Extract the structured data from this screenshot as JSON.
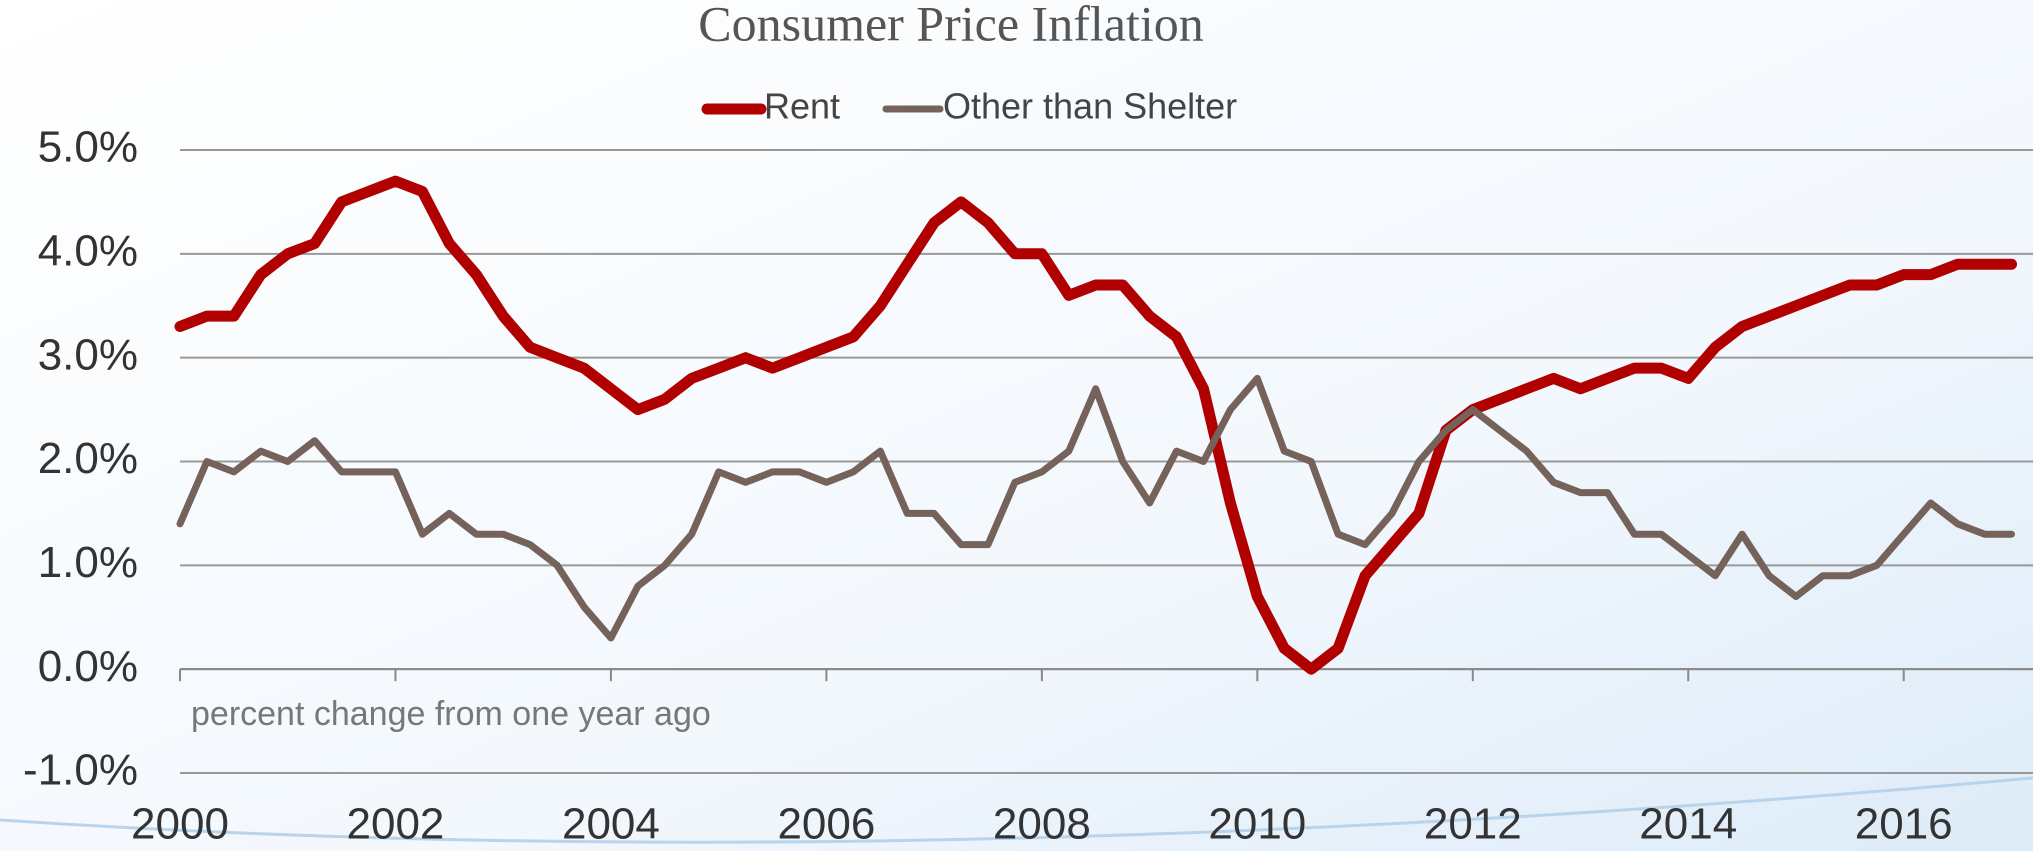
{
  "chart_data": {
    "type": "line",
    "title": "Consumer Price Inflation",
    "annotation": "percent change from one year ago",
    "x": [
      2000,
      2000.25,
      2000.5,
      2000.75,
      2001,
      2001.25,
      2001.5,
      2001.75,
      2002,
      2002.25,
      2002.5,
      2002.75,
      2003,
      2003.25,
      2003.5,
      2003.75,
      2004,
      2004.25,
      2004.5,
      2004.75,
      2005,
      2005.25,
      2005.5,
      2005.75,
      2006,
      2006.25,
      2006.5,
      2006.75,
      2007,
      2007.25,
      2007.5,
      2007.75,
      2008,
      2008.25,
      2008.5,
      2008.75,
      2009,
      2009.25,
      2009.5,
      2009.75,
      2010,
      2010.25,
      2010.5,
      2010.75,
      2011,
      2011.25,
      2011.5,
      2011.75,
      2012,
      2012.25,
      2012.5,
      2012.75,
      2013,
      2013.25,
      2013.5,
      2013.75,
      2014,
      2014.25,
      2014.5,
      2014.75,
      2015,
      2015.25,
      2015.5,
      2015.75,
      2016,
      2016.25,
      2016.5,
      2016.75,
      2017
    ],
    "series": [
      {
        "name": "Rent",
        "color": "#b00000",
        "values": [
          3.3,
          3.4,
          3.4,
          3.8,
          4.0,
          4.1,
          4.5,
          4.6,
          4.7,
          4.6,
          4.1,
          3.8,
          3.4,
          3.1,
          3.0,
          2.9,
          2.7,
          2.5,
          2.6,
          2.8,
          2.9,
          3.0,
          2.9,
          3.0,
          3.1,
          3.2,
          3.5,
          3.9,
          4.3,
          4.5,
          4.3,
          4.0,
          4.0,
          3.6,
          3.7,
          3.7,
          3.4,
          3.2,
          2.7,
          1.6,
          0.7,
          0.2,
          0.0,
          0.2,
          0.9,
          1.2,
          1.5,
          2.3,
          2.5,
          2.6,
          2.7,
          2.8,
          2.7,
          2.8,
          2.9,
          2.9,
          2.8,
          3.1,
          3.3,
          3.4,
          3.5,
          3.6,
          3.7,
          3.7,
          3.8,
          3.8,
          3.9,
          3.9,
          3.9
        ]
      },
      {
        "name": "Other than Shelter",
        "color": "#75625a",
        "values": [
          1.4,
          2.0,
          1.9,
          2.1,
          2.0,
          2.2,
          1.9,
          1.9,
          1.9,
          1.3,
          1.5,
          1.3,
          1.3,
          1.2,
          1.0,
          0.6,
          0.3,
          0.8,
          1.0,
          1.3,
          1.9,
          1.8,
          1.9,
          1.9,
          1.8,
          1.9,
          2.1,
          1.5,
          1.5,
          1.2,
          1.2,
          1.8,
          1.9,
          2.1,
          2.7,
          2.0,
          1.6,
          2.1,
          2.0,
          2.5,
          2.8,
          2.1,
          2.0,
          1.3,
          1.2,
          1.5,
          2.0,
          2.3,
          2.5,
          2.3,
          2.1,
          1.8,
          1.7,
          1.7,
          1.3,
          1.3,
          1.1,
          0.9,
          1.3,
          0.9,
          0.7,
          0.9,
          0.9,
          1.0,
          1.3,
          1.6,
          1.4,
          1.3,
          1.3
        ]
      }
    ],
    "xlim": [
      2000,
      2017.2
    ],
    "xticks": [
      2000,
      2002,
      2004,
      2006,
      2008,
      2010,
      2012,
      2014,
      2016
    ],
    "ylim": [
      -1,
      5
    ],
    "yticks": [
      {
        "value": -1,
        "label": "-1.0%"
      },
      {
        "value": 0,
        "label": "0.0%"
      },
      {
        "value": 1,
        "label": "1.0%"
      },
      {
        "value": 2,
        "label": "2.0%"
      },
      {
        "value": 3,
        "label": "3.0%"
      },
      {
        "value": 4,
        "label": "4.0%"
      },
      {
        "value": 5,
        "label": "5.0%"
      }
    ],
    "grid": true,
    "legend": "top"
  }
}
